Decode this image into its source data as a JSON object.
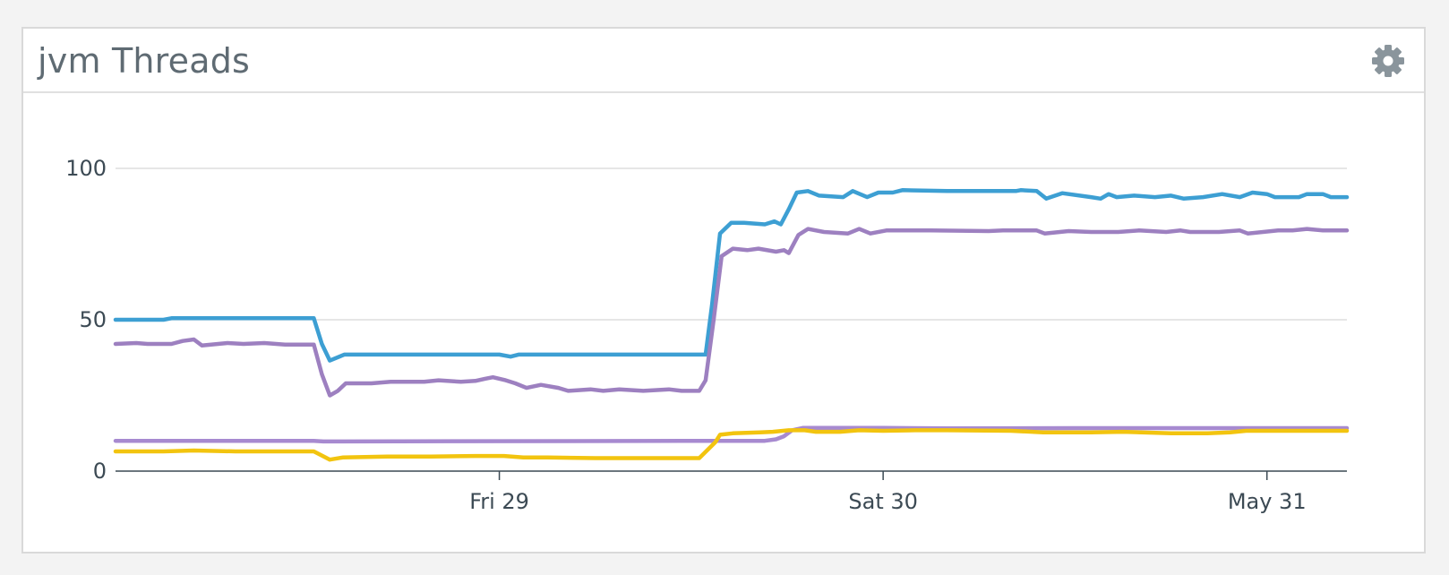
{
  "widget": {
    "title": "jvm Threads",
    "settings_icon": "gear-icon"
  },
  "chart_data": {
    "type": "line",
    "title": "jvm Threads",
    "xlabel": "",
    "ylabel": "",
    "grid": true,
    "legend": "none",
    "x_unit": "hours since start",
    "xlim": [
      0,
      77
    ],
    "ylim": [
      0,
      100
    ],
    "y_ticks": [
      0,
      50,
      100
    ],
    "x_ticks": [
      {
        "label": "Fri 29",
        "x": 24
      },
      {
        "label": "Sat 30",
        "x": 48
      },
      {
        "label": "May 31",
        "x": 72
      }
    ],
    "series": [
      {
        "color": "#3d9fd3",
        "points": [
          [
            0,
            50
          ],
          [
            3,
            50
          ],
          [
            3.5,
            50.5
          ],
          [
            12.4,
            50.5
          ],
          [
            12.9,
            42
          ],
          [
            13.4,
            36.5
          ],
          [
            14.3,
            38.5
          ],
          [
            24,
            38.5
          ],
          [
            24.7,
            37.8
          ],
          [
            25.2,
            38.5
          ],
          [
            36.9,
            38.5
          ],
          [
            37.3,
            55
          ],
          [
            37.8,
            78.5
          ],
          [
            38.5,
            82
          ],
          [
            39.3,
            82
          ],
          [
            40.6,
            81.5
          ],
          [
            41.2,
            82.5
          ],
          [
            41.6,
            81.5
          ],
          [
            42.1,
            86.5
          ],
          [
            42.6,
            92
          ],
          [
            43.3,
            92.5
          ],
          [
            44,
            91
          ],
          [
            45.5,
            90.5
          ],
          [
            46.1,
            92.5
          ],
          [
            47,
            90.5
          ],
          [
            47.7,
            92
          ],
          [
            48.6,
            92
          ],
          [
            49.2,
            92.8
          ],
          [
            52,
            92.5
          ],
          [
            54.7,
            92.5
          ],
          [
            56.3,
            92.5
          ],
          [
            56.6,
            92.8
          ],
          [
            57.6,
            92.5
          ],
          [
            58.2,
            90
          ],
          [
            59.2,
            91.8
          ],
          [
            61,
            90.5
          ],
          [
            61.6,
            90
          ],
          [
            62.1,
            91.5
          ],
          [
            62.6,
            90.5
          ],
          [
            63.7,
            91
          ],
          [
            65,
            90.5
          ],
          [
            66,
            91
          ],
          [
            66.8,
            90
          ],
          [
            68,
            90.5
          ],
          [
            69.2,
            91.5
          ],
          [
            70.3,
            90.5
          ],
          [
            71.1,
            92
          ],
          [
            72,
            91.5
          ],
          [
            72.5,
            90.5
          ],
          [
            74,
            90.5
          ],
          [
            74.5,
            91.5
          ],
          [
            75.5,
            91.5
          ],
          [
            76,
            90.5
          ],
          [
            77,
            90.5
          ]
        ]
      },
      {
        "color": "#9d80c0",
        "points": [
          [
            0,
            42
          ],
          [
            1.3,
            42.3
          ],
          [
            2,
            42
          ],
          [
            3.5,
            42
          ],
          [
            4.2,
            43
          ],
          [
            4.9,
            43.5
          ],
          [
            5.4,
            41.5
          ],
          [
            7,
            42.3
          ],
          [
            8,
            42
          ],
          [
            9.3,
            42.3
          ],
          [
            10.6,
            41.8
          ],
          [
            12.4,
            41.8
          ],
          [
            12.9,
            32
          ],
          [
            13.4,
            25
          ],
          [
            13.9,
            26.5
          ],
          [
            14.4,
            29
          ],
          [
            16,
            29
          ],
          [
            17.2,
            29.5
          ],
          [
            19.3,
            29.5
          ],
          [
            20.2,
            30
          ],
          [
            21.6,
            29.5
          ],
          [
            22.5,
            29.8
          ],
          [
            23.1,
            30.5
          ],
          [
            23.6,
            31
          ],
          [
            24.4,
            30
          ],
          [
            25,
            29
          ],
          [
            25.7,
            27.5
          ],
          [
            26.6,
            28.5
          ],
          [
            27.7,
            27.5
          ],
          [
            28.3,
            26.5
          ],
          [
            29.7,
            27
          ],
          [
            30.5,
            26.5
          ],
          [
            31.5,
            27
          ],
          [
            33,
            26.5
          ],
          [
            34.6,
            27
          ],
          [
            35.4,
            26.5
          ],
          [
            36.5,
            26.5
          ],
          [
            36.9,
            30
          ],
          [
            37.4,
            50
          ],
          [
            37.9,
            71
          ],
          [
            38.6,
            73.5
          ],
          [
            39.5,
            73
          ],
          [
            40.2,
            73.5
          ],
          [
            41.3,
            72.5
          ],
          [
            41.8,
            73
          ],
          [
            42.1,
            72
          ],
          [
            42.7,
            78
          ],
          [
            43.3,
            80
          ],
          [
            44.3,
            79
          ],
          [
            45.8,
            78.5
          ],
          [
            46.5,
            80
          ],
          [
            47.2,
            78.5
          ],
          [
            48.2,
            79.5
          ],
          [
            51,
            79.5
          ],
          [
            54.6,
            79.3
          ],
          [
            55.5,
            79.5
          ],
          [
            56.8,
            79.5
          ],
          [
            57.6,
            79.5
          ],
          [
            58.1,
            78.5
          ],
          [
            59.6,
            79.3
          ],
          [
            61,
            79
          ],
          [
            62.7,
            79
          ],
          [
            64,
            79.5
          ],
          [
            65.7,
            79
          ],
          [
            66.6,
            79.5
          ],
          [
            67.2,
            79
          ],
          [
            69,
            79
          ],
          [
            70.3,
            79.5
          ],
          [
            70.8,
            78.5
          ],
          [
            72.7,
            79.5
          ],
          [
            73.6,
            79.5
          ],
          [
            74.5,
            80
          ],
          [
            75.5,
            79.5
          ],
          [
            77,
            79.5
          ]
        ]
      },
      {
        "color": "#a78ad0",
        "points": [
          [
            0,
            10
          ],
          [
            12.4,
            10
          ],
          [
            13,
            9.8
          ],
          [
            37.5,
            10
          ],
          [
            40.6,
            10
          ],
          [
            41.3,
            10.5
          ],
          [
            41.8,
            11.5
          ],
          [
            42.3,
            13.5
          ],
          [
            43,
            14.3
          ],
          [
            48,
            14.3
          ],
          [
            52,
            14.1
          ],
          [
            60,
            14.2
          ],
          [
            72,
            14.2
          ],
          [
            77,
            14.2
          ]
        ]
      },
      {
        "color": "#f2c40f",
        "points": [
          [
            0,
            6.5
          ],
          [
            3,
            6.5
          ],
          [
            4.9,
            6.8
          ],
          [
            7.5,
            6.5
          ],
          [
            11,
            6.5
          ],
          [
            12.4,
            6.5
          ],
          [
            13.4,
            3.8
          ],
          [
            14.2,
            4.5
          ],
          [
            17,
            4.8
          ],
          [
            19.7,
            4.8
          ],
          [
            22.5,
            5
          ],
          [
            24.3,
            5
          ],
          [
            25.5,
            4.5
          ],
          [
            27,
            4.5
          ],
          [
            30,
            4.3
          ],
          [
            33,
            4.3
          ],
          [
            36.5,
            4.3
          ],
          [
            37.5,
            9.5
          ],
          [
            37.8,
            12
          ],
          [
            38.6,
            12.5
          ],
          [
            40.3,
            12.8
          ],
          [
            41.1,
            13
          ],
          [
            42.1,
            13.5
          ],
          [
            43.1,
            13.5
          ],
          [
            43.8,
            13
          ],
          [
            45.3,
            13
          ],
          [
            46.5,
            13.5
          ],
          [
            48,
            13.3
          ],
          [
            50,
            13.5
          ],
          [
            52,
            13.5
          ],
          [
            56,
            13.3
          ],
          [
            58,
            12.8
          ],
          [
            61,
            12.8
          ],
          [
            63,
            13
          ],
          [
            66,
            12.5
          ],
          [
            68.3,
            12.5
          ],
          [
            69.7,
            12.8
          ],
          [
            70.7,
            13.3
          ],
          [
            77,
            13.3
          ]
        ]
      }
    ]
  }
}
